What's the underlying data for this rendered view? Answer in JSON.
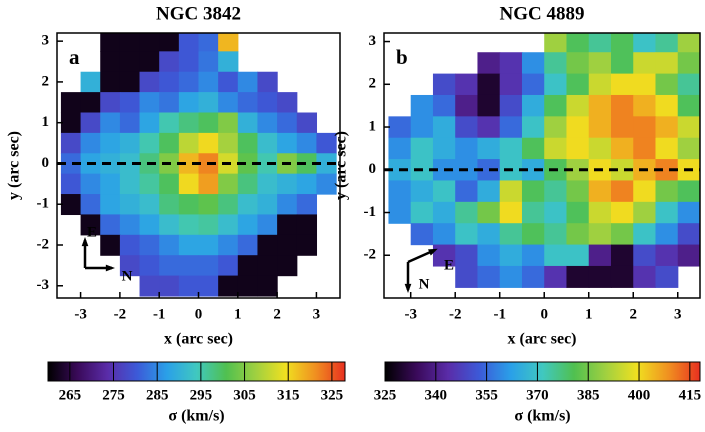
{
  "chart_data": [
    {
      "type": "heatmap",
      "title": "NGC 3842",
      "panel_label": "a",
      "xlabel": "x  (arc sec)",
      "ylabel": "y  (arc sec)",
      "xlim": [
        -3.6,
        3.6
      ],
      "ylim": [
        -3.3,
        3.2
      ],
      "xticks": [
        -3,
        -2,
        -1,
        0,
        1,
        2,
        3
      ],
      "yticks": [
        -3,
        -2,
        -1,
        0,
        1,
        2,
        3
      ],
      "hline": 0,
      "x": [
        -3.25,
        -2.75,
        -2.25,
        -1.75,
        -1.25,
        -0.75,
        -0.25,
        0.25,
        0.75,
        1.25,
        1.75,
        2.25,
        2.75,
        3.25
      ],
      "y": [
        3,
        2.5,
        2,
        1.5,
        1,
        0.5,
        0,
        -0.5,
        -1,
        -1.5,
        -2,
        -2.5,
        -3
      ],
      "z": [
        [
          null,
          null,
          262,
          262,
          262,
          262,
          280,
          282,
          318,
          null,
          null,
          null,
          null,
          null
        ],
        [
          null,
          null,
          262,
          262,
          262,
          278,
          280,
          283,
          290,
          null,
          null,
          null,
          null,
          null
        ],
        [
          null,
          290,
          262,
          262,
          278,
          280,
          282,
          285,
          280,
          285,
          278,
          null,
          null,
          null
        ],
        [
          262,
          262,
          278,
          280,
          285,
          283,
          288,
          290,
          285,
          282,
          280,
          278,
          null,
          null
        ],
        [
          262,
          278,
          285,
          282,
          288,
          295,
          298,
          300,
          305,
          290,
          285,
          282,
          278,
          null
        ],
        [
          278,
          285,
          288,
          290,
          295,
          300,
          310,
          315,
          308,
          300,
          292,
          288,
          285,
          280
        ],
        [
          282,
          288,
          290,
          292,
          298,
          305,
          318,
          322,
          312,
          302,
          295,
          305,
          300,
          290
        ],
        [
          280,
          285,
          288,
          292,
          296,
          300,
          315,
          320,
          305,
          298,
          292,
          290,
          288,
          285
        ],
        [
          262,
          282,
          288,
          290,
          292,
          298,
          300,
          302,
          298,
          292,
          290,
          285,
          282,
          null
        ],
        [
          null,
          262,
          282,
          285,
          288,
          292,
          295,
          296,
          292,
          288,
          285,
          262,
          262,
          null
        ],
        [
          null,
          null,
          262,
          280,
          282,
          285,
          288,
          288,
          285,
          282,
          262,
          262,
          262,
          null
        ],
        [
          null,
          null,
          null,
          278,
          280,
          282,
          282,
          282,
          280,
          262,
          262,
          262,
          null,
          null
        ],
        [
          null,
          null,
          null,
          null,
          278,
          278,
          280,
          280,
          262,
          262,
          262,
          null,
          null,
          null
        ]
      ],
      "annotations": [
        "E",
        "N"
      ],
      "colorbar": {
        "clim": [
          260,
          328
        ],
        "ticks": [
          265,
          275,
          285,
          295,
          305,
          315,
          325
        ],
        "label": "σ  (km/s)",
        "colors": [
          "#000000",
          "#3a0a5a",
          "#5a2ca8",
          "#3c5ad8",
          "#2aa0e8",
          "#40c8c0",
          "#50c050",
          "#a0d040",
          "#f0e020",
          "#f09020",
          "#e83020"
        ]
      }
    },
    {
      "type": "heatmap",
      "title": "NGC 4889",
      "panel_label": "b",
      "xlabel": "x  (arc sec)",
      "ylabel": "y  (arc sec)",
      "xlim": [
        -3.6,
        3.5
      ],
      "ylim": [
        -3,
        3.2
      ],
      "xticks": [
        -3,
        -2,
        -1,
        0,
        1,
        2,
        3
      ],
      "yticks": [
        -2,
        -1,
        0,
        1,
        2,
        3
      ],
      "hline": 0,
      "x": [
        -3.25,
        -2.75,
        -2.25,
        -1.75,
        -1.25,
        -0.75,
        -0.25,
        0.25,
        0.75,
        1.25,
        1.75,
        2.25,
        2.75,
        3.25
      ],
      "y": [
        3,
        2.5,
        2,
        1.5,
        1,
        0.5,
        0,
        -0.5,
        -1,
        -1.5,
        -2,
        -2.5
      ],
      "z": [
        [
          null,
          null,
          null,
          null,
          null,
          null,
          null,
          390,
          380,
          375,
          380,
          370,
          375,
          390
        ],
        [
          null,
          null,
          null,
          null,
          340,
          345,
          360,
          375,
          385,
          390,
          380,
          395,
          395,
          385
        ],
        [
          null,
          null,
          350,
          345,
          330,
          345,
          355,
          370,
          380,
          395,
          400,
          400,
          385,
          375
        ],
        [
          null,
          360,
          355,
          340,
          330,
          350,
          365,
          380,
          395,
          405,
          410,
          405,
          400,
          380
        ],
        [
          355,
          360,
          365,
          350,
          345,
          355,
          370,
          390,
          400,
          405,
          410,
          410,
          405,
          395
        ],
        [
          360,
          370,
          365,
          360,
          365,
          370,
          380,
          395,
          400,
          395,
          405,
          410,
          400,
          390
        ],
        [
          365,
          370,
          360,
          360,
          355,
          370,
          365,
          380,
          390,
          400,
          395,
          405,
          410,
          400
        ],
        [
          360,
          365,
          370,
          355,
          365,
          395,
          380,
          375,
          385,
          405,
          410,
          400,
          385,
          380
        ],
        [
          360,
          370,
          365,
          375,
          385,
          400,
          375,
          370,
          380,
          395,
          400,
          390,
          370,
          360
        ],
        [
          null,
          355,
          360,
          370,
          365,
          375,
          380,
          375,
          385,
          390,
          385,
          370,
          360,
          350
        ],
        [
          null,
          null,
          345,
          350,
          360,
          365,
          360,
          370,
          370,
          340,
          330,
          350,
          345,
          340
        ],
        [
          null,
          null,
          null,
          350,
          355,
          360,
          355,
          345,
          330,
          330,
          330,
          345,
          350,
          null
        ]
      ],
      "annotations": [
        "E",
        "N"
      ],
      "colorbar": {
        "clim": [
          325,
          418
        ],
        "ticks": [
          325,
          340,
          355,
          370,
          385,
          400,
          415
        ],
        "label": "σ  (km/s)",
        "colors": [
          "#000000",
          "#3a0a5a",
          "#5a2ca8",
          "#3c5ad8",
          "#2aa0e8",
          "#40c8c0",
          "#50c050",
          "#a0d040",
          "#f0e020",
          "#f09020",
          "#e83020"
        ]
      }
    }
  ]
}
